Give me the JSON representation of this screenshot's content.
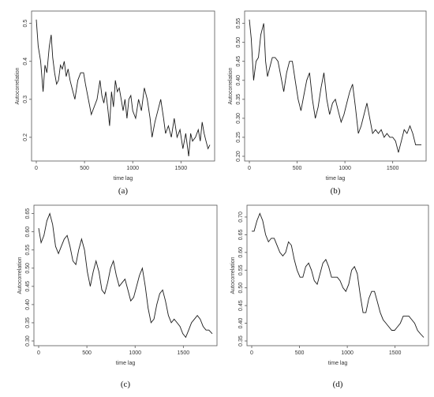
{
  "chart_data": [
    {
      "type": "line",
      "panel_label": "(a)",
      "xlabel": "time lag",
      "ylabel": "Autocorrelation",
      "xlim": [
        0,
        1800
      ],
      "ylim": [
        0.15,
        0.52
      ],
      "xticks": [
        0,
        500,
        1000,
        1500
      ],
      "yticks": [
        0.2,
        0.3,
        0.4,
        0.5
      ],
      "ytick_labels": [
        "0.2",
        "0.3",
        "0.4",
        "0.5"
      ],
      "grid": false,
      "series": [
        {
          "x": [
            0,
            20,
            45,
            70,
            90,
            110,
            135,
            155,
            170,
            190,
            210,
            230,
            250,
            270,
            290,
            310,
            330,
            350,
            370,
            400,
            430,
            460,
            490,
            510,
            540,
            570,
            600,
            630,
            660,
            680,
            700,
            720,
            740,
            760,
            780,
            800,
            820,
            840,
            860,
            880,
            900,
            920,
            940,
            960,
            980,
            1000,
            1030,
            1060,
            1090,
            1120,
            1150,
            1180,
            1200,
            1230,
            1260,
            1290,
            1320,
            1340,
            1370,
            1400,
            1430,
            1460,
            1490,
            1520,
            1550,
            1580,
            1600,
            1620,
            1650,
            1680,
            1700,
            1720,
            1740,
            1760,
            1780,
            1800
          ],
          "y": [
            0.51,
            0.44,
            0.4,
            0.32,
            0.39,
            0.37,
            0.44,
            0.47,
            0.41,
            0.37,
            0.34,
            0.35,
            0.39,
            0.38,
            0.4,
            0.36,
            0.38,
            0.35,
            0.33,
            0.3,
            0.35,
            0.37,
            0.37,
            0.34,
            0.3,
            0.26,
            0.28,
            0.3,
            0.35,
            0.31,
            0.29,
            0.32,
            0.28,
            0.23,
            0.32,
            0.28,
            0.35,
            0.32,
            0.33,
            0.3,
            0.27,
            0.3,
            0.25,
            0.3,
            0.31,
            0.27,
            0.25,
            0.3,
            0.27,
            0.33,
            0.3,
            0.25,
            0.2,
            0.24,
            0.27,
            0.3,
            0.25,
            0.21,
            0.23,
            0.2,
            0.25,
            0.2,
            0.22,
            0.17,
            0.21,
            0.15,
            0.21,
            0.19,
            0.2,
            0.22,
            0.19,
            0.24,
            0.21,
            0.19,
            0.17,
            0.18
          ]
        }
      ]
    },
    {
      "type": "line",
      "panel_label": "(b)",
      "xlabel": "time lag",
      "ylabel": "Autocorrelation",
      "xlim": [
        0,
        1800
      ],
      "ylim": [
        0.2,
        0.57
      ],
      "xticks": [
        0,
        500,
        1000,
        1500
      ],
      "yticks": [
        0.2,
        0.25,
        0.3,
        0.35,
        0.4,
        0.45,
        0.5,
        0.55
      ],
      "ytick_labels": [
        "0.20",
        "0.25",
        "0.30",
        "0.35",
        "0.40",
        "0.45",
        "0.50",
        "0.55"
      ],
      "grid": false,
      "series": [
        {
          "x": [
            0,
            20,
            45,
            70,
            95,
            120,
            150,
            170,
            190,
            210,
            240,
            270,
            300,
            330,
            360,
            390,
            420,
            450,
            480,
            510,
            540,
            570,
            600,
            630,
            660,
            690,
            720,
            750,
            780,
            810,
            840,
            870,
            900,
            930,
            960,
            990,
            1020,
            1050,
            1080,
            1110,
            1140,
            1170,
            1200,
            1230,
            1260,
            1290,
            1320,
            1350,
            1380,
            1410,
            1440,
            1470,
            1500,
            1530,
            1560,
            1590,
            1620,
            1650,
            1680,
            1710,
            1740,
            1770,
            1800
          ],
          "y": [
            0.56,
            0.51,
            0.4,
            0.45,
            0.46,
            0.52,
            0.55,
            0.45,
            0.41,
            0.43,
            0.46,
            0.46,
            0.45,
            0.41,
            0.37,
            0.42,
            0.45,
            0.45,
            0.4,
            0.35,
            0.32,
            0.36,
            0.4,
            0.42,
            0.35,
            0.3,
            0.33,
            0.38,
            0.42,
            0.35,
            0.31,
            0.34,
            0.35,
            0.32,
            0.29,
            0.31,
            0.34,
            0.37,
            0.39,
            0.33,
            0.26,
            0.28,
            0.31,
            0.34,
            0.3,
            0.26,
            0.27,
            0.26,
            0.27,
            0.25,
            0.26,
            0.25,
            0.25,
            0.24,
            0.21,
            0.24,
            0.27,
            0.26,
            0.28,
            0.26,
            0.23,
            0.23,
            0.23
          ]
        }
      ]
    },
    {
      "type": "line",
      "panel_label": "(c)",
      "xlabel": "time lag",
      "ylabel": "Autocorrelation",
      "xlim": [
        0,
        1800
      ],
      "ylim": [
        0.3,
        0.66
      ],
      "xticks": [
        0,
        500,
        1000,
        1500
      ],
      "yticks": [
        0.3,
        0.35,
        0.4,
        0.45,
        0.5,
        0.55,
        0.6,
        0.65
      ],
      "ytick_labels": [
        "0.30",
        "0.35",
        "0.40",
        "0.45",
        "0.50",
        "0.55",
        "0.60",
        "0.65"
      ],
      "grid": false,
      "series": [
        {
          "x": [
            0,
            25,
            55,
            85,
            115,
            145,
            175,
            205,
            235,
            265,
            295,
            325,
            355,
            385,
            415,
            445,
            475,
            505,
            535,
            565,
            595,
            625,
            655,
            685,
            715,
            745,
            775,
            805,
            835,
            865,
            895,
            925,
            955,
            985,
            1015,
            1045,
            1075,
            1105,
            1135,
            1165,
            1195,
            1225,
            1255,
            1285,
            1315,
            1345,
            1375,
            1405,
            1435,
            1465,
            1495,
            1525,
            1555,
            1585,
            1615,
            1645,
            1675,
            1705,
            1735,
            1765,
            1800
          ],
          "y": [
            0.61,
            0.57,
            0.59,
            0.63,
            0.65,
            0.62,
            0.56,
            0.54,
            0.56,
            0.58,
            0.59,
            0.56,
            0.52,
            0.51,
            0.55,
            0.58,
            0.55,
            0.49,
            0.45,
            0.49,
            0.52,
            0.49,
            0.44,
            0.43,
            0.46,
            0.5,
            0.52,
            0.48,
            0.45,
            0.46,
            0.47,
            0.44,
            0.41,
            0.42,
            0.45,
            0.48,
            0.5,
            0.45,
            0.39,
            0.35,
            0.36,
            0.4,
            0.43,
            0.44,
            0.41,
            0.37,
            0.35,
            0.36,
            0.35,
            0.34,
            0.32,
            0.31,
            0.33,
            0.35,
            0.36,
            0.37,
            0.36,
            0.34,
            0.33,
            0.33,
            0.32
          ]
        }
      ]
    },
    {
      "type": "line",
      "panel_label": "(d)",
      "xlabel": "time lag",
      "ylabel": "Autocorrelation",
      "xlim": [
        0,
        1800
      ],
      "ylim": [
        0.35,
        0.72
      ],
      "xticks": [
        0,
        500,
        1000,
        1500
      ],
      "yticks": [
        0.35,
        0.4,
        0.45,
        0.5,
        0.55,
        0.6,
        0.65,
        0.7
      ],
      "ytick_labels": [
        "0.35",
        "0.40",
        "0.45",
        "0.50",
        "0.55",
        "0.60",
        "0.65",
        "0.70"
      ],
      "grid": false,
      "series": [
        {
          "x": [
            0,
            25,
            55,
            85,
            115,
            145,
            175,
            205,
            235,
            265,
            295,
            325,
            355,
            385,
            415,
            445,
            475,
            505,
            535,
            565,
            595,
            625,
            655,
            685,
            715,
            745,
            775,
            805,
            835,
            865,
            895,
            925,
            955,
            985,
            1015,
            1045,
            1075,
            1105,
            1135,
            1165,
            1195,
            1225,
            1255,
            1285,
            1315,
            1345,
            1375,
            1405,
            1435,
            1465,
            1495,
            1525,
            1555,
            1585,
            1615,
            1645,
            1675,
            1705,
            1735,
            1765,
            1800
          ],
          "y": [
            0.66,
            0.66,
            0.69,
            0.71,
            0.69,
            0.65,
            0.63,
            0.64,
            0.64,
            0.62,
            0.6,
            0.59,
            0.6,
            0.63,
            0.62,
            0.58,
            0.55,
            0.53,
            0.53,
            0.56,
            0.57,
            0.55,
            0.52,
            0.51,
            0.54,
            0.57,
            0.58,
            0.56,
            0.53,
            0.53,
            0.53,
            0.52,
            0.5,
            0.49,
            0.51,
            0.55,
            0.56,
            0.54,
            0.48,
            0.43,
            0.43,
            0.47,
            0.49,
            0.49,
            0.46,
            0.43,
            0.41,
            0.4,
            0.39,
            0.38,
            0.38,
            0.39,
            0.4,
            0.42,
            0.42,
            0.42,
            0.41,
            0.4,
            0.38,
            0.37,
            0.36
          ]
        }
      ]
    }
  ]
}
